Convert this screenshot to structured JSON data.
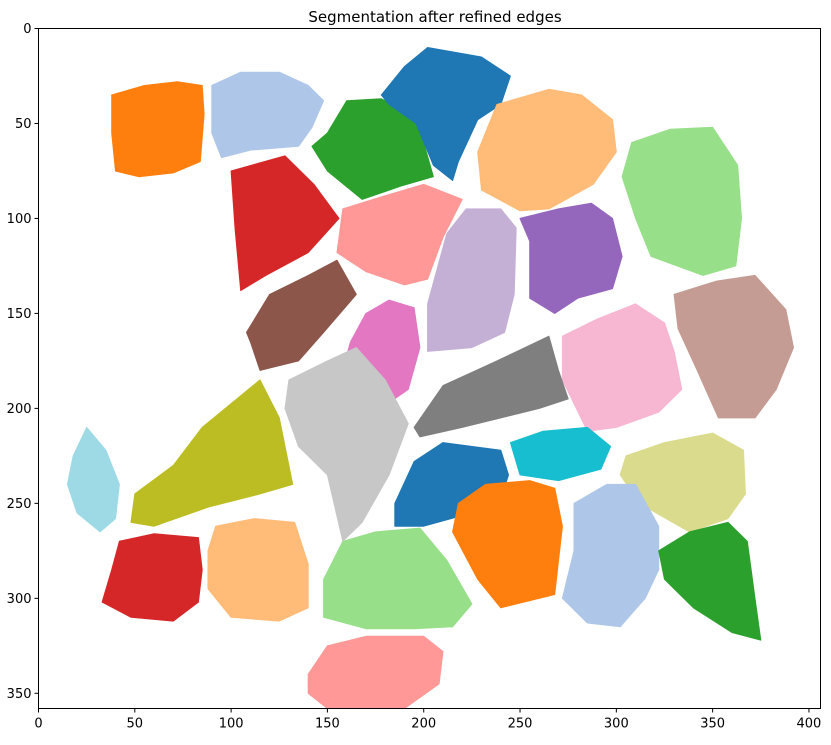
{
  "chart_data": {
    "type": "heatmap",
    "title": "Segmentation after refined edges",
    "xlabel": "",
    "ylabel": "",
    "xlim": [
      0,
      406
    ],
    "ylim": [
      358,
      0
    ],
    "xticks": [
      0,
      50,
      100,
      150,
      200,
      250,
      300,
      350,
      400
    ],
    "yticks": [
      0,
      50,
      100,
      150,
      200,
      250,
      300,
      350
    ],
    "grid": false,
    "legend": "none",
    "background": "#ffffff",
    "segments": [
      {
        "color": "#ff7f0e",
        "points": [
          [
            38,
            35
          ],
          [
            55,
            30
          ],
          [
            72,
            28
          ],
          [
            85,
            30
          ],
          [
            86,
            45
          ],
          [
            84,
            70
          ],
          [
            70,
            76
          ],
          [
            52,
            78
          ],
          [
            40,
            75
          ],
          [
            38,
            55
          ]
        ]
      },
      {
        "color": "#aec7e8",
        "points": [
          [
            90,
            30
          ],
          [
            105,
            23
          ],
          [
            125,
            23
          ],
          [
            140,
            30
          ],
          [
            148,
            38
          ],
          [
            142,
            52
          ],
          [
            135,
            62
          ],
          [
            110,
            64
          ],
          [
            95,
            68
          ],
          [
            90,
            55
          ]
        ]
      },
      {
        "color": "#2ca02c",
        "points": [
          [
            150,
            55
          ],
          [
            160,
            38
          ],
          [
            178,
            37
          ],
          [
            195,
            45
          ],
          [
            200,
            60
          ],
          [
            205,
            78
          ],
          [
            188,
            83
          ],
          [
            168,
            90
          ],
          [
            150,
            75
          ],
          [
            142,
            62
          ]
        ]
      },
      {
        "color": "#1f77b4",
        "points": [
          [
            178,
            35
          ],
          [
            190,
            20
          ],
          [
            202,
            10
          ],
          [
            230,
            15
          ],
          [
            245,
            25
          ],
          [
            240,
            40
          ],
          [
            228,
            48
          ],
          [
            218,
            70
          ],
          [
            215,
            80
          ],
          [
            205,
            72
          ],
          [
            196,
            50
          ],
          [
            182,
            40
          ]
        ]
      },
      {
        "color": "#ffbb78",
        "points": [
          [
            238,
            40
          ],
          [
            265,
            32
          ],
          [
            282,
            35
          ],
          [
            298,
            48
          ],
          [
            300,
            65
          ],
          [
            288,
            82
          ],
          [
            265,
            95
          ],
          [
            250,
            96
          ],
          [
            230,
            85
          ],
          [
            228,
            65
          ]
        ]
      },
      {
        "color": "#98df8a",
        "points": [
          [
            308,
            60
          ],
          [
            328,
            53
          ],
          [
            350,
            52
          ],
          [
            363,
            72
          ],
          [
            365,
            100
          ],
          [
            362,
            125
          ],
          [
            345,
            130
          ],
          [
            318,
            120
          ],
          [
            310,
            100
          ],
          [
            303,
            78
          ]
        ]
      },
      {
        "color": "#d62728",
        "points": [
          [
            100,
            75
          ],
          [
            128,
            67
          ],
          [
            143,
            82
          ],
          [
            156,
            100
          ],
          [
            140,
            118
          ],
          [
            118,
            130
          ],
          [
            105,
            138
          ],
          [
            102,
            105
          ]
        ]
      },
      {
        "color": "#ff9896",
        "points": [
          [
            158,
            95
          ],
          [
            180,
            88
          ],
          [
            200,
            82
          ],
          [
            220,
            90
          ],
          [
            210,
            110
          ],
          [
            202,
            132
          ],
          [
            190,
            135
          ],
          [
            170,
            128
          ],
          [
            155,
            118
          ]
        ]
      },
      {
        "color": "#c5b0d5",
        "points": [
          [
            212,
            108
          ],
          [
            222,
            95
          ],
          [
            240,
            95
          ],
          [
            248,
            105
          ],
          [
            247,
            140
          ],
          [
            242,
            160
          ],
          [
            225,
            168
          ],
          [
            202,
            170
          ],
          [
            202,
            145
          ]
        ]
      },
      {
        "color": "#9467bd",
        "points": [
          [
            250,
            100
          ],
          [
            270,
            95
          ],
          [
            287,
            92
          ],
          [
            298,
            100
          ],
          [
            303,
            120
          ],
          [
            298,
            137
          ],
          [
            280,
            142
          ],
          [
            268,
            150
          ],
          [
            255,
            142
          ],
          [
            255,
            112
          ]
        ]
      },
      {
        "color": "#c49c94",
        "points": [
          [
            330,
            140
          ],
          [
            352,
            133
          ],
          [
            372,
            130
          ],
          [
            388,
            148
          ],
          [
            392,
            168
          ],
          [
            383,
            190
          ],
          [
            372,
            205
          ],
          [
            353,
            205
          ],
          [
            342,
            180
          ],
          [
            332,
            158
          ]
        ]
      },
      {
        "color": "#8c564b",
        "points": [
          [
            108,
            160
          ],
          [
            120,
            140
          ],
          [
            140,
            130
          ],
          [
            155,
            122
          ],
          [
            165,
            140
          ],
          [
            148,
            160
          ],
          [
            135,
            175
          ],
          [
            115,
            180
          ],
          [
            110,
            165
          ]
        ]
      },
      {
        "color": "#e377c2",
        "points": [
          [
            162,
            165
          ],
          [
            170,
            150
          ],
          [
            182,
            143
          ],
          [
            195,
            147
          ],
          [
            198,
            168
          ],
          [
            192,
            190
          ],
          [
            182,
            197
          ],
          [
            170,
            190
          ],
          [
            160,
            172
          ]
        ]
      },
      {
        "color": "#f7b6d2",
        "points": [
          [
            272,
            162
          ],
          [
            290,
            153
          ],
          [
            310,
            145
          ],
          [
            325,
            155
          ],
          [
            330,
            170
          ],
          [
            334,
            190
          ],
          [
            322,
            202
          ],
          [
            300,
            210
          ],
          [
            285,
            212
          ],
          [
            272,
            185
          ]
        ]
      },
      {
        "color": "#7f7f7f",
        "points": [
          [
            195,
            210
          ],
          [
            210,
            188
          ],
          [
            238,
            175
          ],
          [
            265,
            162
          ],
          [
            270,
            180
          ],
          [
            275,
            195
          ],
          [
            260,
            200
          ],
          [
            240,
            205
          ],
          [
            220,
            210
          ],
          [
            198,
            215
          ]
        ]
      },
      {
        "color": "#bcbd22",
        "points": [
          [
            48,
            260
          ],
          [
            50,
            245
          ],
          [
            70,
            230
          ],
          [
            85,
            210
          ],
          [
            103,
            195
          ],
          [
            115,
            185
          ],
          [
            125,
            205
          ],
          [
            132,
            240
          ],
          [
            115,
            245
          ],
          [
            88,
            252
          ],
          [
            60,
            262
          ]
        ]
      },
      {
        "color": "#c7c7c7",
        "points": [
          [
            130,
            185
          ],
          [
            150,
            175
          ],
          [
            165,
            168
          ],
          [
            180,
            185
          ],
          [
            192,
            208
          ],
          [
            182,
            235
          ],
          [
            168,
            260
          ],
          [
            158,
            270
          ],
          [
            150,
            235
          ],
          [
            135,
            220
          ],
          [
            128,
            200
          ]
        ]
      },
      {
        "color": "#1f77b4",
        "points": [
          [
            185,
            250
          ],
          [
            195,
            228
          ],
          [
            210,
            218
          ],
          [
            240,
            222
          ],
          [
            244,
            235
          ],
          [
            240,
            248
          ],
          [
            225,
            255
          ],
          [
            200,
            262
          ],
          [
            185,
            262
          ]
        ]
      },
      {
        "color": "#17becf",
        "points": [
          [
            245,
            218
          ],
          [
            262,
            212
          ],
          [
            285,
            210
          ],
          [
            297,
            220
          ],
          [
            292,
            232
          ],
          [
            270,
            238
          ],
          [
            250,
            235
          ]
        ]
      },
      {
        "color": "#dbdb8d",
        "points": [
          [
            305,
            225
          ],
          [
            325,
            218
          ],
          [
            350,
            213
          ],
          [
            366,
            222
          ],
          [
            367,
            245
          ],
          [
            358,
            258
          ],
          [
            338,
            265
          ],
          [
            312,
            250
          ],
          [
            302,
            235
          ]
        ]
      },
      {
        "color": "#9edae5",
        "points": [
          [
            15,
            240
          ],
          [
            18,
            225
          ],
          [
            25,
            210
          ],
          [
            35,
            222
          ],
          [
            42,
            240
          ],
          [
            40,
            258
          ],
          [
            32,
            265
          ],
          [
            20,
            255
          ]
        ]
      },
      {
        "color": "#ff7f0e",
        "points": [
          [
            218,
            250
          ],
          [
            232,
            240
          ],
          [
            255,
            238
          ],
          [
            268,
            242
          ],
          [
            272,
            262
          ],
          [
            268,
            298
          ],
          [
            240,
            305
          ],
          [
            228,
            290
          ],
          [
            215,
            265
          ]
        ]
      },
      {
        "color": "#aec7e8",
        "points": [
          [
            278,
            250
          ],
          [
            295,
            240
          ],
          [
            310,
            240
          ],
          [
            322,
            262
          ],
          [
            322,
            285
          ],
          [
            315,
            300
          ],
          [
            302,
            315
          ],
          [
            285,
            313
          ],
          [
            272,
            300
          ],
          [
            278,
            275
          ]
        ]
      },
      {
        "color": "#2ca02c",
        "points": [
          [
            322,
            275
          ],
          [
            338,
            265
          ],
          [
            358,
            260
          ],
          [
            368,
            270
          ],
          [
            372,
            300
          ],
          [
            375,
            322
          ],
          [
            360,
            318
          ],
          [
            340,
            305
          ],
          [
            325,
            290
          ]
        ]
      },
      {
        "color": "#d62728",
        "points": [
          [
            38,
            285
          ],
          [
            42,
            270
          ],
          [
            60,
            266
          ],
          [
            83,
            268
          ],
          [
            85,
            285
          ],
          [
            83,
            302
          ],
          [
            70,
            312
          ],
          [
            48,
            310
          ],
          [
            33,
            302
          ]
        ]
      },
      {
        "color": "#ffbb78",
        "points": [
          [
            88,
            275
          ],
          [
            92,
            262
          ],
          [
            112,
            258
          ],
          [
            133,
            260
          ],
          [
            140,
            282
          ],
          [
            140,
            305
          ],
          [
            125,
            312
          ],
          [
            100,
            310
          ],
          [
            88,
            295
          ]
        ]
      },
      {
        "color": "#98df8a",
        "points": [
          [
            148,
            290
          ],
          [
            158,
            270
          ],
          [
            175,
            265
          ],
          [
            198,
            263
          ],
          [
            212,
            280
          ],
          [
            225,
            303
          ],
          [
            215,
            315
          ],
          [
            195,
            316
          ],
          [
            170,
            316
          ],
          [
            148,
            310
          ]
        ]
      },
      {
        "color": "#ff9896",
        "points": [
          [
            140,
            340
          ],
          [
            150,
            325
          ],
          [
            170,
            320
          ],
          [
            200,
            320
          ],
          [
            210,
            328
          ],
          [
            208,
            345
          ],
          [
            190,
            358
          ],
          [
            150,
            358
          ],
          [
            140,
            350
          ]
        ]
      }
    ]
  }
}
